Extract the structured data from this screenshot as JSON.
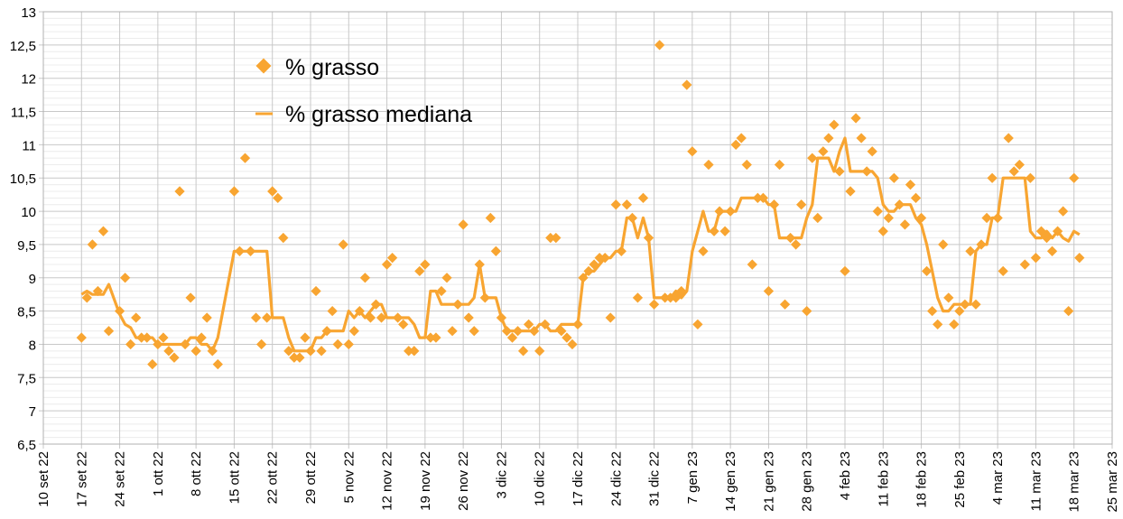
{
  "chart_data": {
    "type": "scatter",
    "title": "",
    "xlabel": "",
    "ylabel": "",
    "ylim": [
      6.5,
      13
    ],
    "y_ticks": [
      "6,5",
      "7",
      "7,5",
      "8",
      "8,5",
      "9",
      "9,5",
      "10",
      "10,5",
      "11",
      "11,5",
      "12",
      "12,5",
      "13"
    ],
    "x_tick_labels": [
      "10 set 22",
      "17 set 22",
      "24 set 22",
      "1 ott 22",
      "8 ott 22",
      "15 ott 22",
      "22 ott 22",
      "29 ott 22",
      "5 nov 22",
      "12 nov 22",
      "19 nov 22",
      "26 nov 22",
      "3 dic 22",
      "10 dic 22",
      "17 dic 22",
      "24 dic 22",
      "31 dic 22",
      "7 gen 23",
      "14 gen 23",
      "21 gen 23",
      "28 gen 23",
      "4 feb 23",
      "11 feb 23",
      "18 feb 23",
      "25 feb 23",
      "4 mar 23",
      "11 mar 23",
      "18 mar 23",
      "25 mar 23"
    ],
    "x_range_days": [
      0,
      196
    ],
    "x_start_day": 7,
    "grid": true,
    "legend_position": "top-left",
    "series": [
      {
        "name": "% grasso",
        "kind": "scatter",
        "color": "#f8a531",
        "values": [
          8.1,
          8.7,
          9.5,
          8.8,
          9.7,
          8.2,
          null,
          8.5,
          9.0,
          8.0,
          8.4,
          8.1,
          8.1,
          7.7,
          8.0,
          8.1,
          7.9,
          7.8,
          10.3,
          8.0,
          8.7,
          7.9,
          8.1,
          8.4,
          7.9,
          7.7,
          null,
          null,
          10.3,
          9.4,
          10.8,
          9.4,
          8.4,
          8.0,
          8.4,
          10.3,
          10.2,
          9.6,
          7.9,
          7.8,
          7.8,
          8.1,
          7.9,
          8.8,
          7.9,
          8.2,
          8.5,
          8.0,
          9.5,
          8.0,
          8.2,
          8.5,
          9.0,
          8.4,
          8.6,
          8.4,
          9.2,
          9.3,
          8.4,
          8.3,
          7.9,
          7.9,
          9.1,
          9.2,
          8.1,
          8.1,
          8.8,
          9.0,
          8.2,
          8.6,
          9.8,
          8.4,
          8.2,
          9.2,
          8.7,
          9.9,
          9.4,
          8.4,
          8.2,
          8.1,
          8.2,
          7.9,
          8.3,
          8.2,
          7.9,
          8.3,
          9.6,
          9.6,
          8.2,
          8.1,
          8.0,
          8.3,
          9.0,
          9.1,
          9.2,
          9.3,
          9.3,
          8.4,
          10.1,
          9.4,
          10.1,
          9.9,
          8.7,
          10.2,
          9.6,
          8.6,
          12.5,
          8.7,
          8.7,
          8.7,
          8.8,
          11.9,
          10.9,
          8.3,
          9.4,
          10.7,
          9.7,
          10.0,
          9.7,
          10.0,
          11.0,
          11.1,
          10.7,
          9.2,
          10.2,
          10.2,
          8.8,
          10.1,
          10.7,
          8.6,
          9.6,
          9.5,
          10.1,
          8.5,
          10.8,
          9.9,
          10.9,
          11.1,
          11.3,
          10.6,
          9.1,
          10.3,
          11.4,
          11.1,
          10.6,
          10.9,
          10.0,
          9.7,
          9.9,
          10.5,
          10.1,
          9.8,
          10.4,
          10.2,
          9.9,
          9.1,
          8.5,
          8.3,
          9.5,
          8.7,
          8.3,
          8.5,
          8.6,
          9.4,
          8.6,
          9.5,
          9.9,
          10.5,
          9.9,
          9.1,
          11.1,
          10.6,
          10.7,
          9.2,
          10.5,
          9.3,
          9.7,
          9.6,
          9.4,
          9.7,
          10.0,
          8.5,
          10.5,
          9.3
        ]
      },
      {
        "name": "% grasso mediana",
        "kind": "line",
        "color": "#f8a531",
        "rolling_median_window": 7
      }
    ]
  }
}
